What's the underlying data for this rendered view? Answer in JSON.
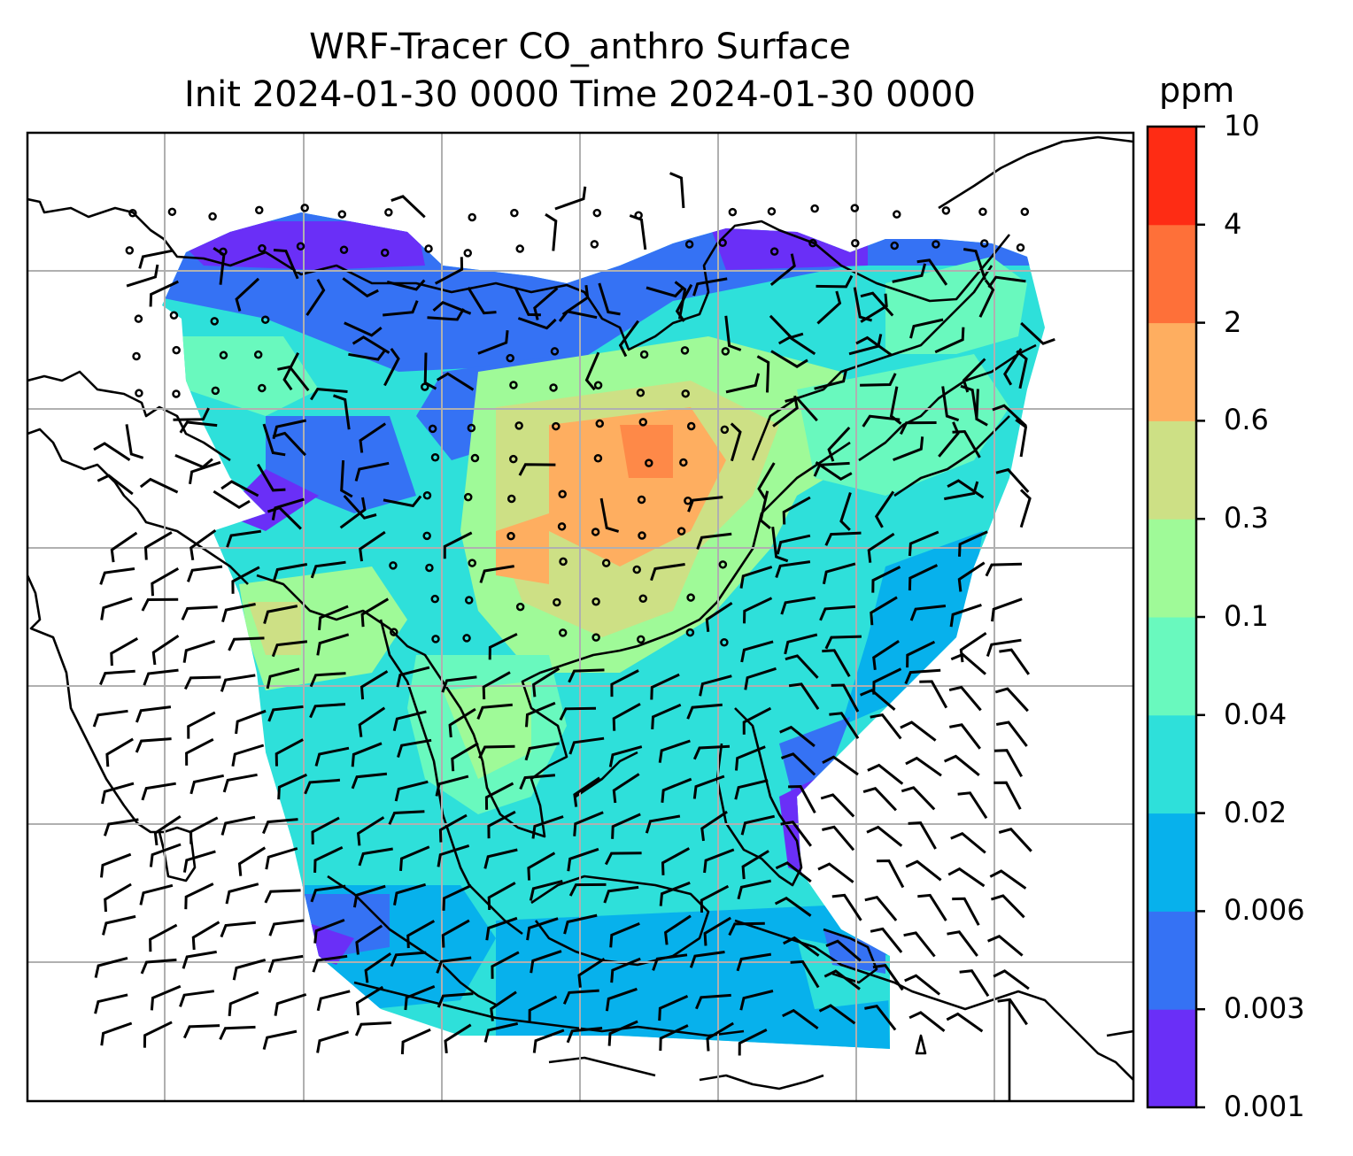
{
  "title": {
    "line1": "WRF-Tracer CO_anthro Surface",
    "line2": "Init 2024-01-30 0000 Time 2024-01-30 0000"
  },
  "colorbar": {
    "units": "ppm",
    "levels": [
      "0.001",
      "0.003",
      "0.006",
      "0.02",
      "0.04",
      "0.1",
      "0.3",
      "0.6",
      "2",
      "4",
      "10"
    ],
    "colors": [
      "#6a2ff7",
      "#3572f4",
      "#07b1ec",
      "#2ee0da",
      "#69f9be",
      "#9ffa98",
      "#cde085",
      "#feae60",
      "#fe7039",
      "#fe2c14"
    ]
  },
  "map": {
    "field": "CO_anthro surface concentration",
    "overlays": [
      "coastlines",
      "country borders",
      "gridlines",
      "wind barbs"
    ]
  }
}
